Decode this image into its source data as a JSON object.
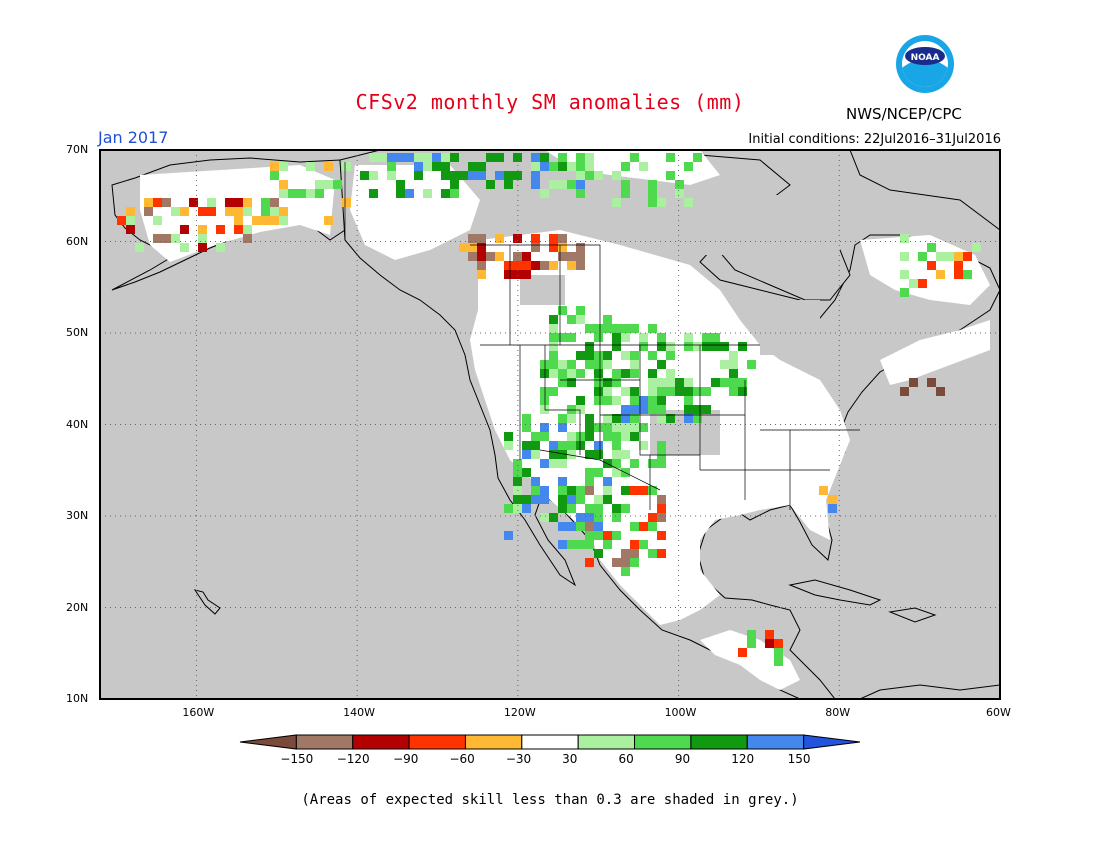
{
  "title": "CFSv2 monthly SM anomalies (mm)",
  "org": "NWS/NCEP/CPC",
  "logo_text": "NOAA",
  "month": "Jan 2017",
  "initial_conditions": "Initial conditions: 22Jul2016–31Jul2016",
  "footnote": "(Areas of expected skill less than 0.3 are shaded in grey.)",
  "lat_labels": [
    "70N",
    "60N",
    "50N",
    "40N",
    "30N",
    "20N",
    "10N"
  ],
  "lon_labels": [
    "160W",
    "140W",
    "120W",
    "100W",
    "80W",
    "60W"
  ],
  "legend": {
    "labels": [
      "−150",
      "−120",
      "−90",
      "−60",
      "−30",
      "30",
      "60",
      "90",
      "120",
      "150"
    ],
    "colors": [
      "#7a4a3a",
      "#a17765",
      "#b30000",
      "#ff3300",
      "#ffb833",
      "#ffffff",
      "#aaf0a0",
      "#4fd94f",
      "#119911",
      "#4488ee",
      "#2255dd"
    ]
  },
  "colors": {
    "ocean": "#c8c8c8",
    "skill_grey": "#c8c8c8",
    "title": "#e3001b",
    "month": "#1f4fd6"
  },
  "map": {
    "lon_range": [
      -172,
      -60
    ],
    "lat_range": [
      10,
      70
    ]
  }
}
